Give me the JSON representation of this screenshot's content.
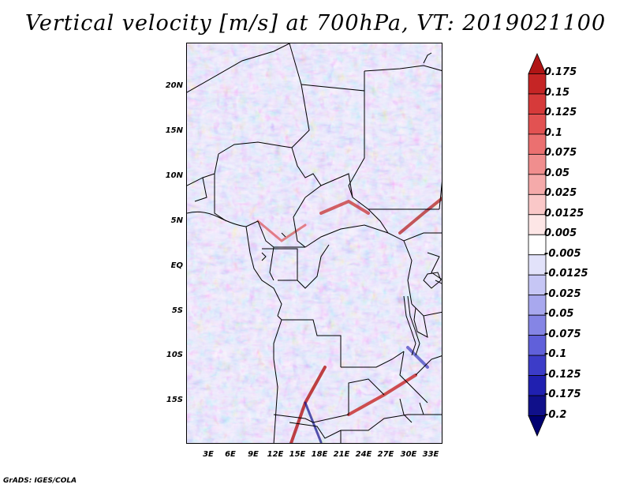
{
  "title": "Vertical velocity [m/s] at 700hPa, VT: 2019021100",
  "credit": "GrADS: IGES/COLA",
  "map": {
    "region": "Central Africa",
    "lon_range": [
      0,
      35
    ],
    "lat_range": [
      -20,
      25
    ],
    "lat_labels": [
      "20N",
      "15N",
      "10N",
      "5N",
      "EQ",
      "5S",
      "10S",
      "15S"
    ],
    "lon_labels": [
      "3E",
      "6E",
      "9E",
      "12E",
      "15E",
      "18E",
      "21E",
      "24E",
      "27E",
      "30E",
      "33E"
    ]
  },
  "colorbar": {
    "levels": [
      "0.175",
      "0.15",
      "0.125",
      "0.1",
      "0.075",
      "0.05",
      "0.025",
      "0.0125",
      "0.005",
      "-0.005",
      "-0.0125",
      "-0.025",
      "-0.05",
      "-0.075",
      "-0.1",
      "-0.125",
      "-0.175",
      "-0.2"
    ],
    "colors": [
      "#b01515",
      "#c52525",
      "#d63a3a",
      "#e25252",
      "#eb7070",
      "#f08e8e",
      "#f5aaaa",
      "#fac8c8",
      "#fde6e6",
      "#ffffff",
      "#e2e2fa",
      "#c6c6f5",
      "#a8a8ee",
      "#8585e5",
      "#6060da",
      "#3c3cc8",
      "#2020b0",
      "#10108a",
      "#000070"
    ]
  }
}
